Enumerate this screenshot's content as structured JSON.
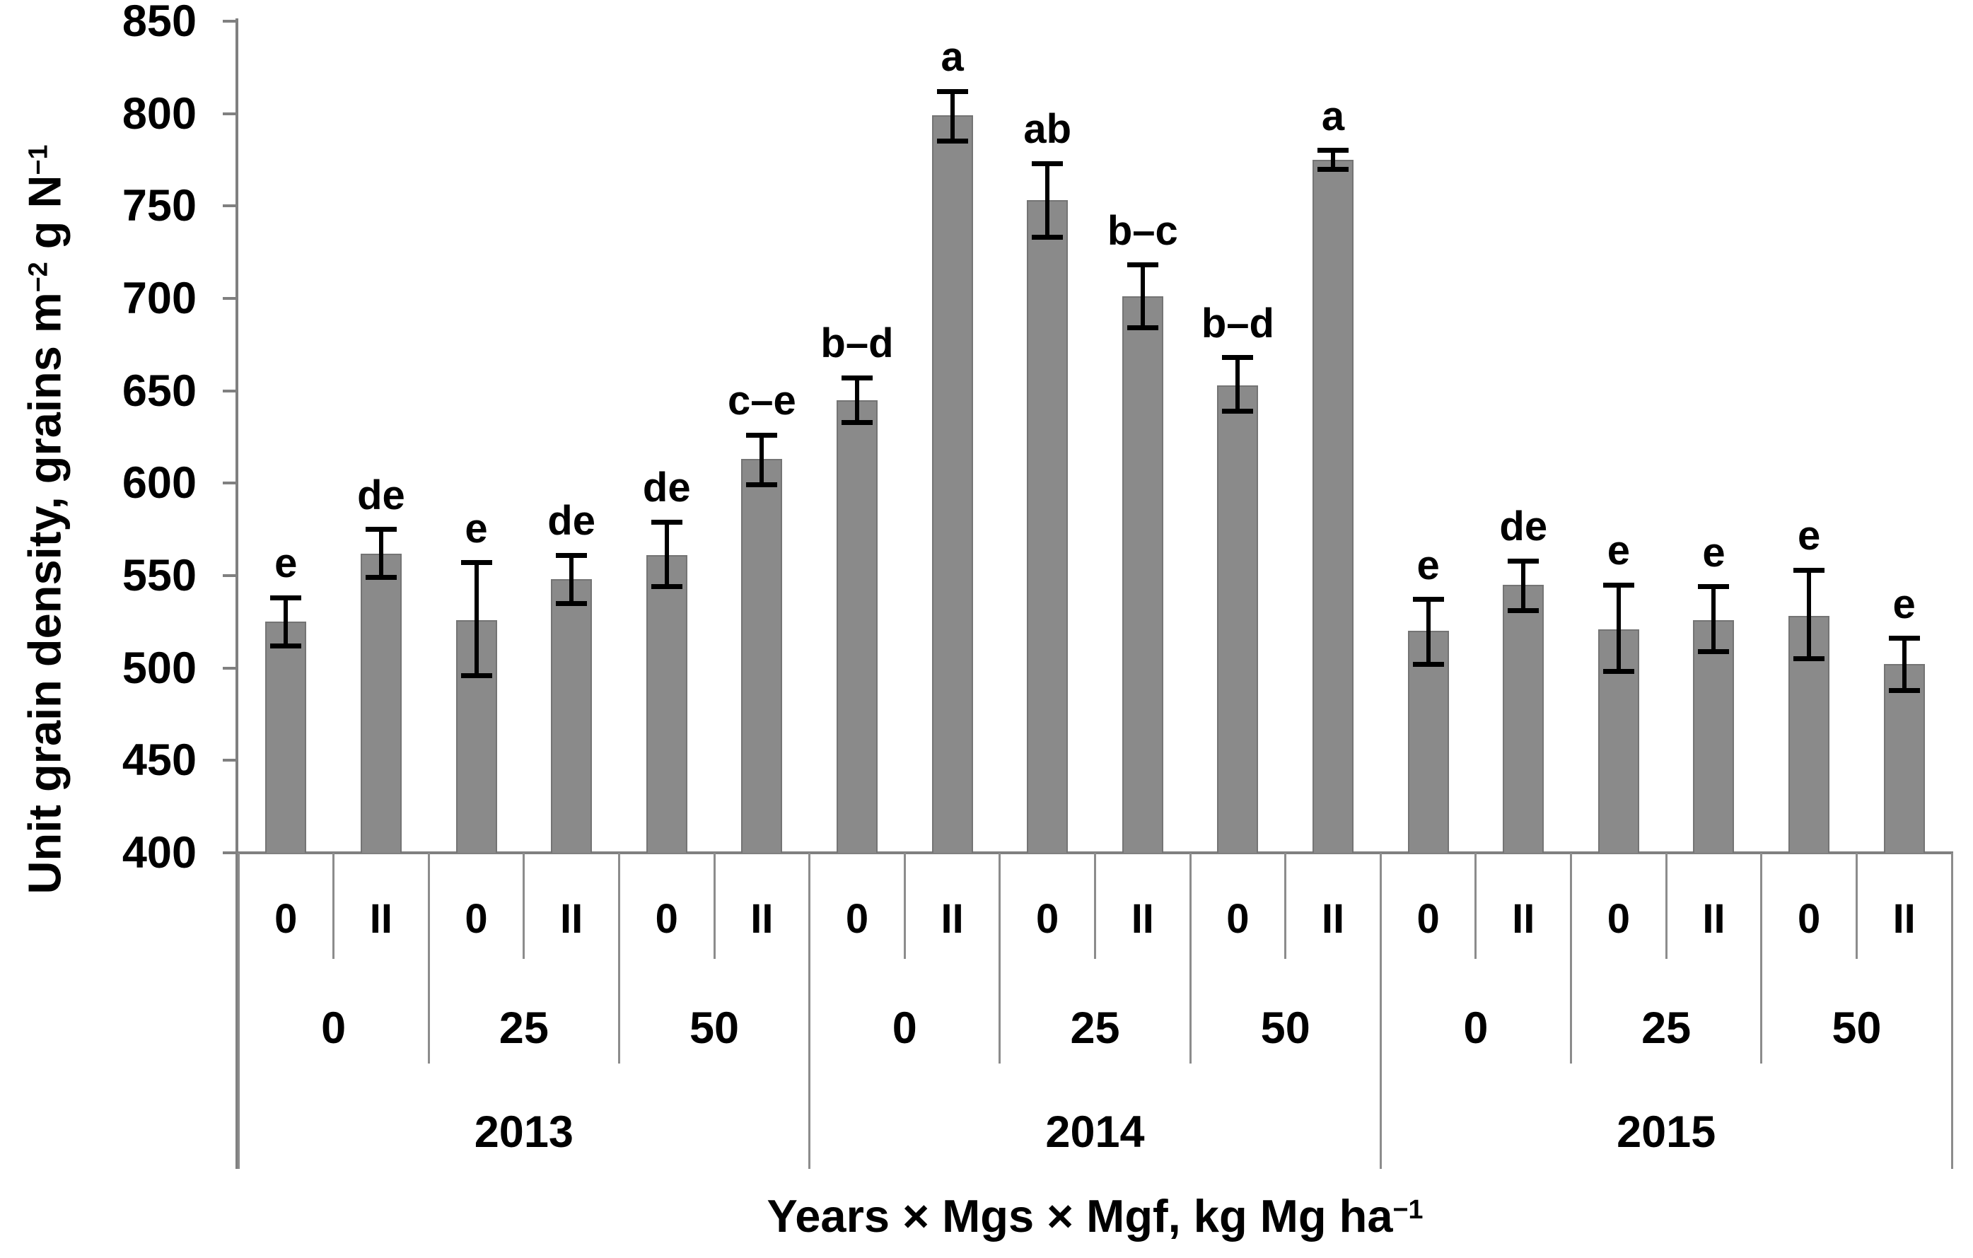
{
  "figure": {
    "background": "#ffffff"
  },
  "chart_data": {
    "type": "bar",
    "title": "",
    "y_axis": {
      "label_text": "Unit grain density, grains m−2 g N−1",
      "label_segments": [
        {
          "t": "Unit grain density, grains m"
        },
        {
          "t": "−2",
          "sup": true
        },
        {
          "t": " g N"
        },
        {
          "t": "−1",
          "sup": true
        }
      ],
      "ylim": [
        400,
        850
      ],
      "ticks": [
        850,
        800,
        750,
        700,
        650,
        600,
        550,
        500,
        450,
        400
      ],
      "grid": "off"
    },
    "x_axis": {
      "label_text": "Years × Mgs × Mgf, kg Mg ha−1",
      "label_segments": [
        {
          "t": "Years × Mgs × Mgf, kg Mg ha"
        },
        {
          "t": "−1",
          "sup": true
        }
      ]
    },
    "legend": "none",
    "bars": [
      {
        "year": "2013",
        "mgs": "0",
        "mgf": "0",
        "value": 525,
        "err_up": 13,
        "err_down": 13,
        "letter": "e"
      },
      {
        "year": "2013",
        "mgs": "0",
        "mgf": "II",
        "value": 562,
        "err_up": 13,
        "err_down": 13,
        "letter": "de"
      },
      {
        "year": "2013",
        "mgs": "25",
        "mgf": "0",
        "value": 526,
        "err_up": 31,
        "err_down": 30,
        "letter": "e"
      },
      {
        "year": "2013",
        "mgs": "25",
        "mgf": "II",
        "value": 548,
        "err_up": 13,
        "err_down": 13,
        "letter": "de"
      },
      {
        "year": "2013",
        "mgs": "50",
        "mgf": "0",
        "value": 561,
        "err_up": 18,
        "err_down": 17,
        "letter": "de"
      },
      {
        "year": "2013",
        "mgs": "50",
        "mgf": "II",
        "value": 613,
        "err_up": 13,
        "err_down": 14,
        "letter": "c–e"
      },
      {
        "year": "2014",
        "mgs": "0",
        "mgf": "0",
        "value": 645,
        "err_up": 12,
        "err_down": 12,
        "letter": "b–d"
      },
      {
        "year": "2014",
        "mgs": "0",
        "mgf": "II",
        "value": 799,
        "err_up": 13,
        "err_down": 14,
        "letter": "a"
      },
      {
        "year": "2014",
        "mgs": "25",
        "mgf": "0",
        "value": 753,
        "err_up": 20,
        "err_down": 20,
        "letter": "ab"
      },
      {
        "year": "2014",
        "mgs": "25",
        "mgf": "II",
        "value": 701,
        "err_up": 17,
        "err_down": 17,
        "letter": "b–c"
      },
      {
        "year": "2014",
        "mgs": "50",
        "mgf": "0",
        "value": 653,
        "err_up": 15,
        "err_down": 14,
        "letter": "b–d"
      },
      {
        "year": "2014",
        "mgs": "50",
        "mgf": "II",
        "value": 775,
        "err_up": 5,
        "err_down": 5,
        "letter": "a"
      },
      {
        "year": "2015",
        "mgs": "0",
        "mgf": "0",
        "value": 520,
        "err_up": 17,
        "err_down": 18,
        "letter": "e"
      },
      {
        "year": "2015",
        "mgs": "0",
        "mgf": "II",
        "value": 545,
        "err_up": 13,
        "err_down": 14,
        "letter": "de"
      },
      {
        "year": "2015",
        "mgs": "25",
        "mgf": "0",
        "value": 521,
        "err_up": 24,
        "err_down": 23,
        "letter": "e"
      },
      {
        "year": "2015",
        "mgs": "25",
        "mgf": "II",
        "value": 526,
        "err_up": 18,
        "err_down": 17,
        "letter": "e"
      },
      {
        "year": "2015",
        "mgs": "50",
        "mgf": "0",
        "value": 528,
        "err_up": 25,
        "err_down": 23,
        "letter": "e"
      },
      {
        "year": "2015",
        "mgs": "50",
        "mgf": "II",
        "value": 502,
        "err_up": 14,
        "err_down": 14,
        "letter": "e"
      }
    ],
    "colors": {
      "bar_fill": "#8a8a8a",
      "bar_border": "#747474",
      "axis_line": "#808080",
      "divider_line": "#8c8c8c",
      "error_bar": "#000000",
      "text": "#000000"
    }
  }
}
